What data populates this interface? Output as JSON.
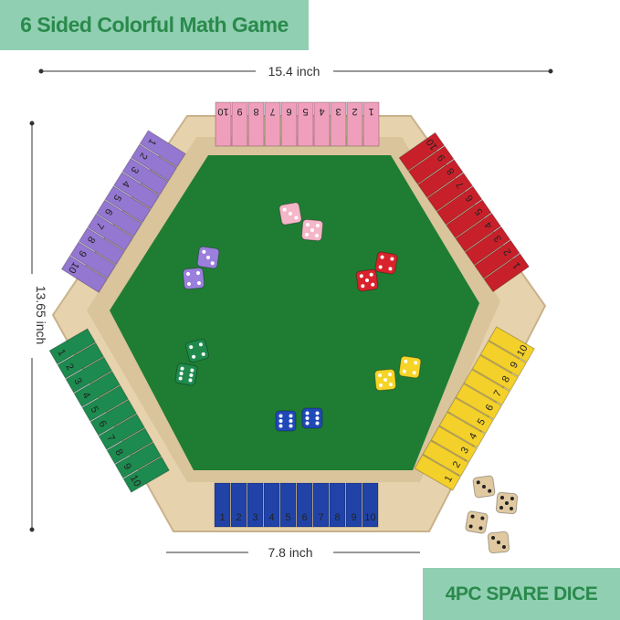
{
  "title": "6 Sided Colorful Math Game",
  "spare_label": "4PC SPARE DICE",
  "dimensions": {
    "width": "15.4 inch",
    "height": "13.65 inch",
    "side": "7.8 inch"
  },
  "colors": {
    "banner": "#90cfb1",
    "banner_text": "#2a8a4c",
    "felt": "#1f7d33",
    "wood": "#e6d3ad"
  },
  "tile_numbers": [
    "1",
    "2",
    "3",
    "4",
    "5",
    "6",
    "7",
    "8",
    "9",
    "10"
  ],
  "rows": [
    {
      "name": "pink",
      "color": "#ef9fbc"
    },
    {
      "name": "red",
      "color": "#c8202a"
    },
    {
      "name": "yellow",
      "color": "#f3d02a"
    },
    {
      "name": "blue",
      "color": "#2143a8"
    },
    {
      "name": "green",
      "color": "#1d8a4f"
    },
    {
      "name": "purple",
      "color": "#9477d0"
    }
  ],
  "dice": [
    {
      "color": "#f4b6c8",
      "pips": 3
    },
    {
      "color": "#f4b6c8",
      "pips": 5
    },
    {
      "color": "#9a80dc",
      "pips": 3
    },
    {
      "color": "#9a80dc",
      "pips": 4
    },
    {
      "color": "#d8232c",
      "pips": 4
    },
    {
      "color": "#d8232c",
      "pips": 5
    },
    {
      "color": "#1f8a4c",
      "pips": 4
    },
    {
      "color": "#1f8a4c",
      "pips": 6
    },
    {
      "color": "#f5d426",
      "pips": 5
    },
    {
      "color": "#f5d426",
      "pips": 4
    },
    {
      "color": "#2049b8",
      "pips": 6
    },
    {
      "color": "#2049b8",
      "pips": 6
    },
    {
      "color": "#e0c9a0",
      "pips": 3
    },
    {
      "color": "#e0c9a0",
      "pips": 5
    },
    {
      "color": "#e0c9a0",
      "pips": 4
    },
    {
      "color": "#e0c9a0",
      "pips": 3
    }
  ]
}
